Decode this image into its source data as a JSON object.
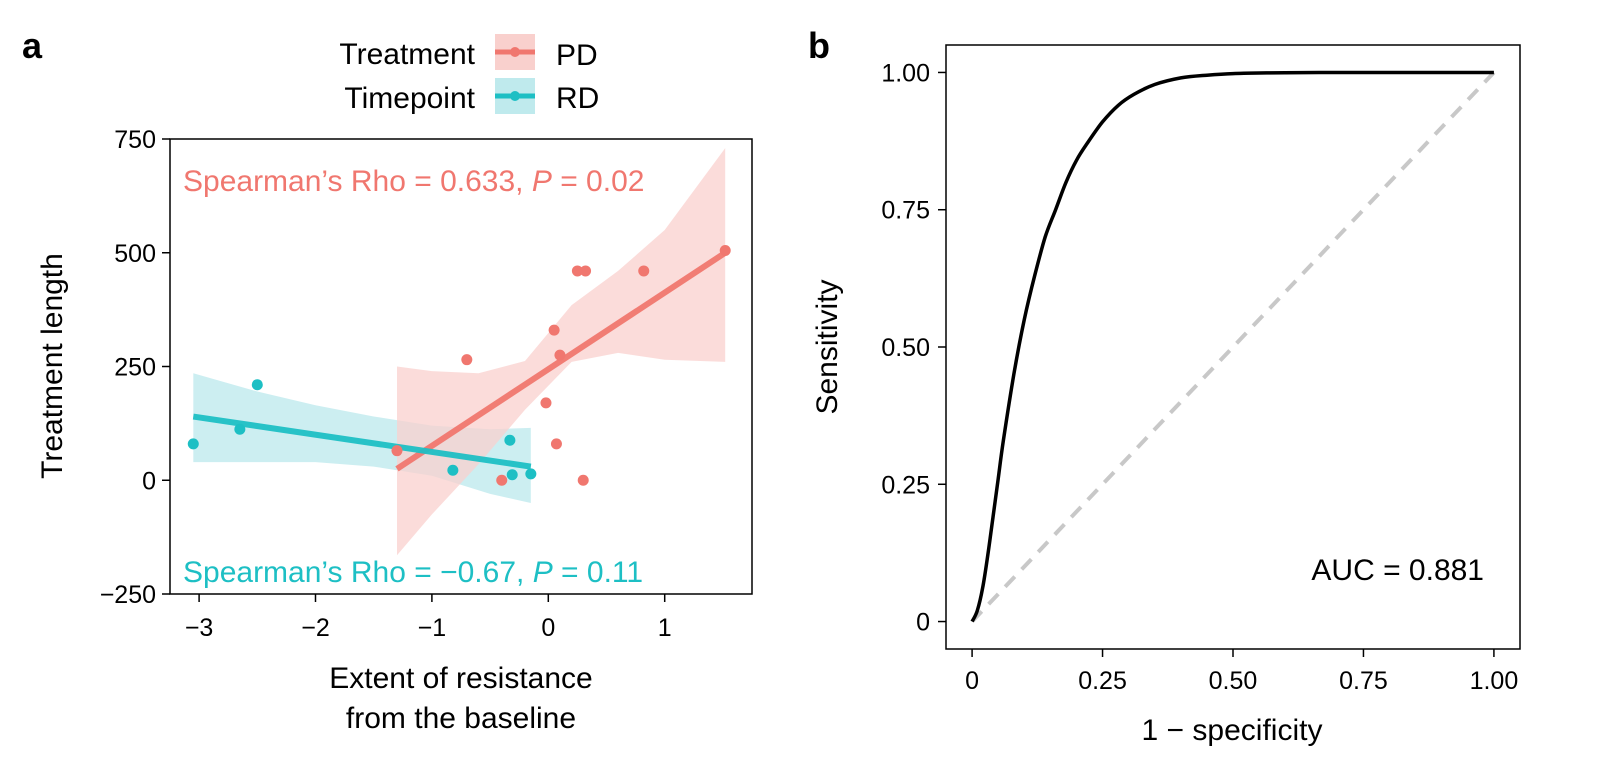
{
  "panels": {
    "a_label": "a",
    "b_label": "b"
  },
  "colors": {
    "pd": "#f0776f",
    "rd": "#1dbfc4",
    "pd_band": "#f9d0cd",
    "rd_band": "#bfeaed",
    "roc_curve": "#000000",
    "diagonal": "#c8c8c8"
  },
  "chart_data": [
    {
      "type": "scatter",
      "panel": "a",
      "xlabel": [
        "Extent of resistance",
        "from the baseline"
      ],
      "ylabel": "Treatment length",
      "xlim": [
        -3.25,
        1.75
      ],
      "ylim": [
        -250,
        750
      ],
      "xticks": [
        -3,
        -2,
        -1,
        0,
        1
      ],
      "xtick_labels": [
        "−3",
        "−2",
        "−1",
        "0",
        "1"
      ],
      "yticks": [
        -250,
        0,
        250,
        500,
        750
      ],
      "ytick_labels": [
        "−250",
        "0",
        "250",
        "500",
        "750"
      ],
      "grid": false,
      "legend": {
        "position": "top",
        "titles": [
          "Treatment",
          "Timepoint"
        ],
        "entries": [
          "PD",
          "RD"
        ]
      },
      "series": [
        {
          "name": "PD",
          "color": "#f0776f",
          "points": [
            [
              -1.3,
              65
            ],
            [
              -0.7,
              265
            ],
            [
              -0.4,
              0
            ],
            [
              -0.02,
              170
            ],
            [
              0.05,
              330
            ],
            [
              0.07,
              80
            ],
            [
              0.1,
              275
            ],
            [
              0.3,
              0
            ],
            [
              0.25,
              460
            ],
            [
              0.32,
              460
            ],
            [
              0.82,
              460
            ],
            [
              1.52,
              505
            ]
          ],
          "fit": {
            "x": [
              -1.3,
              1.52
            ],
            "y": [
              25,
              500
            ]
          },
          "band": {
            "x": [
              -1.3,
              -1.0,
              -0.6,
              -0.2,
              0.2,
              0.6,
              1.0,
              1.52
            ],
            "upper": [
              250,
              240,
              235,
              262,
              385,
              460,
              550,
              730
            ],
            "lower": [
              -165,
              -75,
              35,
              155,
              260,
              280,
              265,
              260
            ]
          },
          "annotation": {
            "prefix": "Spearman’s Rho = 0.633, ",
            "p_italic": "P",
            "suffix": " = 0.02"
          }
        },
        {
          "name": "RD",
          "color": "#1dbfc4",
          "points": [
            [
              -3.05,
              80
            ],
            [
              -2.65,
              112
            ],
            [
              -2.5,
              210
            ],
            [
              -0.82,
              22
            ],
            [
              -0.33,
              88
            ],
            [
              -0.31,
              12
            ],
            [
              -0.15,
              14
            ]
          ],
          "fit": {
            "x": [
              -3.05,
              -0.15
            ],
            "y": [
              140,
              30
            ]
          },
          "band": {
            "x": [
              -3.05,
              -2.5,
              -2.0,
              -1.5,
              -1.0,
              -0.5,
              -0.15
            ],
            "upper": [
              235,
              195,
              165,
              140,
              120,
              112,
              115
            ],
            "lower": [
              40,
              40,
              40,
              30,
              10,
              -30,
              -50
            ]
          },
          "annotation": {
            "prefix": "Spearman’s Rho = −0.67, ",
            "p_italic": "P",
            "suffix": " = 0.11"
          }
        }
      ]
    },
    {
      "type": "line",
      "panel": "b",
      "xlabel": "1 − specificity",
      "ylabel": "Sensitivity",
      "xlim": [
        -0.05,
        1.05
      ],
      "ylim": [
        -0.05,
        1.05
      ],
      "xticks": [
        0,
        0.25,
        0.5,
        0.75,
        1.0
      ],
      "xtick_labels": [
        "0",
        "0.25",
        "0.50",
        "0.75",
        "1.00"
      ],
      "yticks": [
        0,
        0.25,
        0.5,
        0.75,
        1.0
      ],
      "ytick_labels": [
        "0",
        "0.25",
        "0.50",
        "0.75",
        "1.00"
      ],
      "grid": false,
      "annotation": "AUC = 0.881",
      "series": [
        {
          "color": "#000000",
          "x": [
            0.0,
            0.01,
            0.02,
            0.03,
            0.04,
            0.05,
            0.06,
            0.08,
            0.1,
            0.12,
            0.14,
            0.16,
            0.18,
            0.2,
            0.22,
            0.25,
            0.28,
            0.31,
            0.35,
            0.4,
            0.45,
            0.5,
            0.55,
            0.6,
            0.7,
            0.8,
            0.9,
            1.0
          ],
          "y": [
            0.0,
            0.02,
            0.06,
            0.12,
            0.19,
            0.26,
            0.33,
            0.45,
            0.55,
            0.63,
            0.7,
            0.75,
            0.8,
            0.84,
            0.87,
            0.91,
            0.94,
            0.96,
            0.978,
            0.99,
            0.995,
            0.998,
            0.999,
            0.9995,
            1.0,
            1.0,
            1.0,
            1.0
          ]
        }
      ],
      "reference_line": {
        "x": [
          0,
          1
        ],
        "y": [
          0,
          1
        ],
        "style": "dashed"
      }
    }
  ]
}
